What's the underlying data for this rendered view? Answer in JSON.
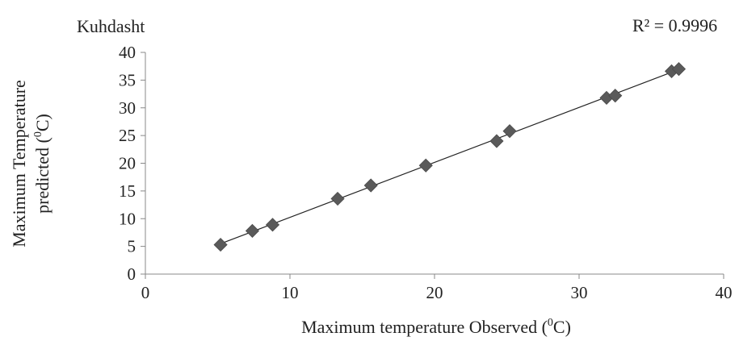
{
  "chart_data": {
    "type": "scatter",
    "title": "Kuhdasht",
    "annotation": "R² = 0.9996",
    "xlabel": {
      "before": "Maximum temperature Observed (",
      "superscript": "0",
      "after": "C)"
    },
    "ylabel": {
      "line1": "Maximum Temperature",
      "line2_before": "predicted (",
      "line2_superscript": "0",
      "line2_after": "C)"
    },
    "xlim": [
      0,
      40
    ],
    "ylim": [
      0,
      40
    ],
    "x_ticks": [
      0,
      10,
      20,
      30,
      40
    ],
    "y_ticks": [
      0,
      5,
      10,
      15,
      20,
      25,
      30,
      35,
      40
    ],
    "grid": false,
    "marker": "diamond",
    "marker_color": "#5a5a5a",
    "trendline": {
      "type": "linear",
      "color": "#222222",
      "x_range": [
        5.2,
        36.9
      ]
    },
    "series": [
      {
        "points": [
          [
            5.2,
            5.3
          ],
          [
            7.4,
            7.8
          ],
          [
            8.8,
            8.9
          ],
          [
            13.3,
            13.6
          ],
          [
            15.6,
            16.0
          ],
          [
            19.4,
            19.6
          ],
          [
            24.3,
            24.0
          ],
          [
            25.2,
            25.8
          ],
          [
            31.9,
            31.8
          ],
          [
            32.5,
            32.2
          ],
          [
            36.4,
            36.6
          ],
          [
            36.9,
            37.0
          ]
        ]
      }
    ]
  }
}
